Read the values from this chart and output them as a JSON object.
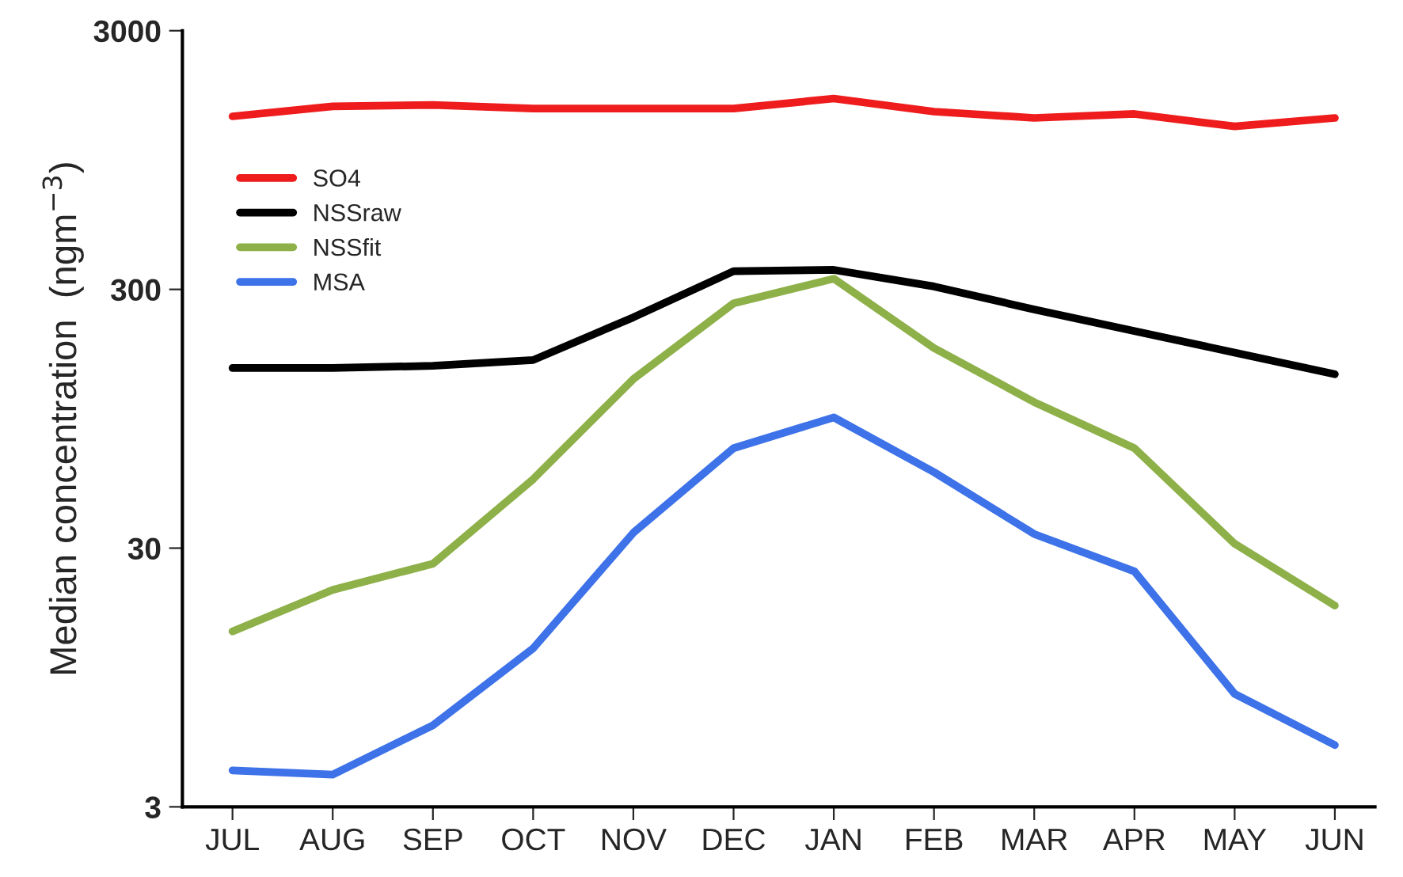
{
  "chart_data": {
    "type": "line",
    "ylabel": "Median concentration  (ngm$^{−3}$)",
    "categories": [
      "JUL",
      "AUG",
      "SEP",
      "OCT",
      "NOV",
      "DEC",
      "JAN",
      "FEB",
      "MAR",
      "APR",
      "MAY",
      "JUN"
    ],
    "series": [
      {
        "name": "SO4",
        "color": "#ee1c1c",
        "values": [
          1400,
          1530,
          1550,
          1500,
          1500,
          1500,
          1640,
          1460,
          1380,
          1430,
          1280,
          1380
        ]
      },
      {
        "name": "NSSraw",
        "color": "#000000",
        "values": [
          149,
          149,
          152,
          160,
          234,
          353,
          357,
          308,
          251,
          207,
          171,
          141
        ]
      },
      {
        "name": "NSSfit",
        "color": "#8db048",
        "values": [
          14.3,
          20.7,
          26.1,
          55.4,
          135,
          265,
          330,
          178,
          110,
          73,
          31.2,
          18.0
        ]
      },
      {
        "name": "MSA",
        "color": "#3d72e8",
        "values": [
          4.15,
          4.0,
          6.2,
          12.3,
          34.4,
          73,
          96,
          59,
          34,
          24.4,
          8.2,
          5.2
        ]
      }
    ],
    "log": true,
    "ylim": [
      3,
      3000
    ],
    "yticks": [
      3,
      30,
      300,
      3000
    ],
    "legend": "top left",
    "grid": false,
    "marker": "none",
    "line_style": "solid"
  }
}
